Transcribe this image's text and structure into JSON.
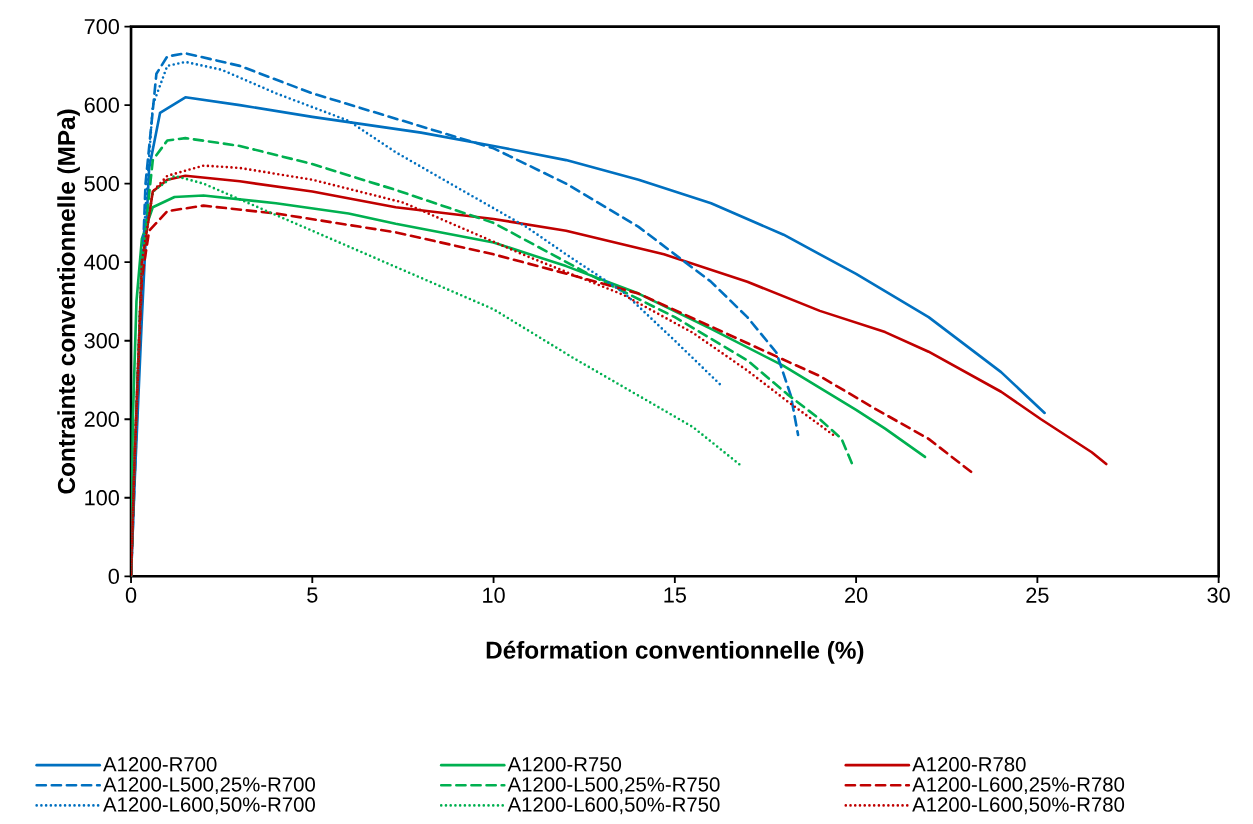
{
  "chart_data": {
    "type": "line",
    "xlabel": "Déformation conventionnelle (%)",
    "ylabel": "Contrainte conventionnelle (MPa)",
    "xlim": [
      0,
      30
    ],
    "ylim": [
      0,
      700
    ],
    "xticks": [
      0,
      5,
      10,
      15,
      20,
      25,
      30
    ],
    "yticks": [
      0,
      100,
      200,
      300,
      400,
      500,
      600,
      700
    ],
    "grid": false,
    "legend": "bottom",
    "marker": "none",
    "series": [
      {
        "name": "A1200-R700",
        "color": "#0070c0",
        "line_style": "solid",
        "x": [
          0,
          0.1,
          0.3,
          0.5,
          0.8,
          1.5,
          3,
          5,
          8,
          10,
          12,
          14,
          16,
          18,
          20,
          22,
          24,
          25.2
        ],
        "values": [
          0,
          120,
          330,
          520,
          590,
          610,
          600,
          585,
          565,
          548,
          530,
          505,
          475,
          435,
          385,
          330,
          260,
          208
        ]
      },
      {
        "name": "A1200-R750",
        "color": "#00b050",
        "line_style": "solid",
        "x": [
          0,
          0.05,
          0.15,
          0.3,
          0.6,
          1.2,
          2,
          4,
          6,
          7.3,
          10,
          12,
          14,
          16,
          18,
          20,
          20.8,
          21.9
        ],
        "values": [
          0,
          200,
          350,
          430,
          470,
          483,
          485,
          475,
          462,
          449,
          425,
          395,
          360,
          315,
          268,
          212,
          188,
          152
        ]
      },
      {
        "name": "A1200-R780",
        "color": "#c00000",
        "line_style": "solid",
        "x": [
          0,
          0.1,
          0.3,
          0.6,
          1,
          1.5,
          3,
          5,
          7.3,
          10,
          12,
          14.7,
          17,
          19,
          20.8,
          22,
          24,
          25.1,
          26.5,
          26.9
        ],
        "values": [
          0,
          150,
          400,
          490,
          505,
          510,
          503,
          490,
          470,
          455,
          440,
          410,
          375,
          338,
          311,
          286,
          235,
          200,
          158,
          143
        ]
      },
      {
        "name": "A1200-L500,25%-R700",
        "color": "#0070c0",
        "line_style": "dashed",
        "x": [
          0,
          0.2,
          0.4,
          0.7,
          1,
          1.5,
          3,
          5,
          7.5,
          10,
          12,
          14,
          15,
          16,
          17,
          17.8,
          18.2,
          18.4
        ],
        "values": [
          0,
          250,
          500,
          640,
          662,
          666,
          650,
          615,
          580,
          545,
          500,
          445,
          410,
          375,
          330,
          285,
          230,
          180
        ]
      },
      {
        "name": "A1200-L500,25%-R750",
        "color": "#00b050",
        "line_style": "dashed",
        "x": [
          0,
          0.1,
          0.3,
          0.6,
          1,
          1.5,
          3,
          5,
          7.3,
          10,
          12.7,
          15,
          17,
          18.1,
          19,
          19.6,
          19.9
        ],
        "values": [
          0,
          150,
          400,
          530,
          555,
          558,
          548,
          525,
          492,
          450,
          383,
          330,
          275,
          232,
          200,
          175,
          142
        ]
      },
      {
        "name": "A1200-L600,25%-R780",
        "color": "#c00000",
        "line_style": "dashed",
        "x": [
          0,
          0.1,
          0.3,
          0.5,
          1,
          2,
          4,
          7.3,
          10,
          12.2,
          14,
          16,
          17.8,
          19,
          20.5,
          22,
          23.2
        ],
        "values": [
          0,
          150,
          380,
          440,
          465,
          472,
          462,
          438,
          410,
          383,
          360,
          318,
          280,
          255,
          214,
          175,
          132
        ]
      },
      {
        "name": "A1200-L600,50%-R700",
        "color": "#0070c0",
        "line_style": "dotted",
        "x": [
          0,
          0.1,
          0.3,
          0.6,
          1,
          1.5,
          2.5,
          4,
          6,
          7.3,
          9,
          10.9,
          12,
          13.6,
          15,
          16.3
        ],
        "values": [
          0,
          150,
          400,
          600,
          650,
          655,
          645,
          615,
          580,
          540,
          495,
          445,
          410,
          361,
          300,
          242
        ]
      },
      {
        "name": "A1200-L600,50%-R750",
        "color": "#00b050",
        "line_style": "dotted",
        "x": [
          0,
          0.1,
          0.3,
          0.6,
          1.2,
          2,
          3,
          5,
          7.8,
          10,
          12.2,
          14,
          15.5,
          16.85
        ],
        "values": [
          0,
          150,
          400,
          490,
          510,
          500,
          480,
          440,
          384,
          340,
          278,
          230,
          190,
          140
        ]
      },
      {
        "name": "A1200-L600,50%-R780",
        "color": "#c00000",
        "line_style": "dotted",
        "x": [
          0,
          0.1,
          0.3,
          0.6,
          1,
          2,
          3,
          5,
          7.5,
          9,
          10.9,
          13.6,
          15.5,
          17,
          18.1,
          19.4
        ],
        "values": [
          0,
          150,
          400,
          490,
          510,
          523,
          520,
          505,
          476,
          446,
          408,
          358,
          310,
          262,
          223,
          179
        ]
      }
    ]
  }
}
